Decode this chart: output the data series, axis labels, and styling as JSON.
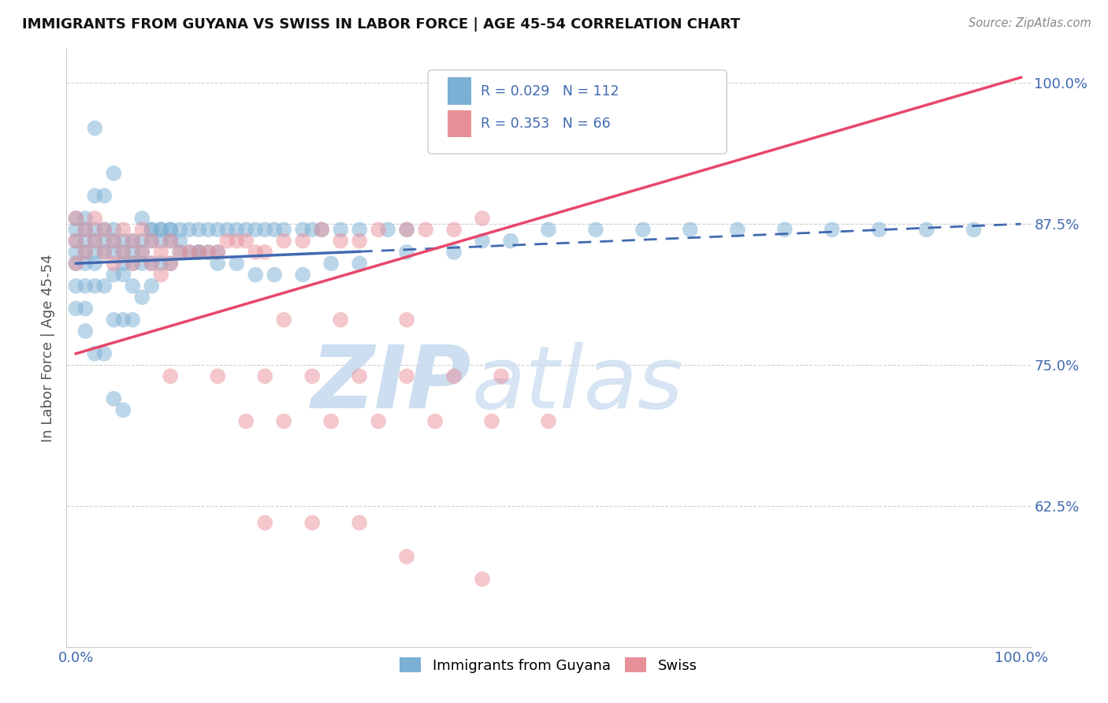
{
  "title": "IMMIGRANTS FROM GUYANA VS SWISS IN LABOR FORCE | AGE 45-54 CORRELATION CHART",
  "source": "Source: ZipAtlas.com",
  "ylabel": "In Labor Force | Age 45-54",
  "xlim": [
    -0.01,
    1.01
  ],
  "ylim": [
    0.5,
    1.03
  ],
  "xtick_positions": [
    0.0,
    1.0
  ],
  "xtick_labels": [
    "0.0%",
    "100.0%"
  ],
  "ytick_vals": [
    0.625,
    0.75,
    0.875,
    1.0
  ],
  "ytick_labels": [
    "62.5%",
    "75.0%",
    "87.5%",
    "100.0%"
  ],
  "legend_r1": "R = 0.029",
  "legend_n1": "N = 112",
  "legend_r2": "R = 0.353",
  "legend_n2": "N = 66",
  "legend_label1": "Immigrants from Guyana",
  "legend_label2": "Swiss",
  "color_blue": "#7bafd4",
  "color_pink": "#e8909a",
  "color_blue_line": "#4169b0",
  "color_pink_line": "#e8476a",
  "watermark_zip_color": "#c5d9ee",
  "watermark_atlas_color": "#c5d9ee",
  "background_color": "#ffffff",
  "grid_color": "#d0d0d0",
  "tick_color": "#4169b0",
  "ylabel_color": "#555555",
  "title_color": "#111111",
  "source_color": "#888888",
  "blue_x": [
    0.0,
    0.0,
    0.0,
    0.0,
    0.0,
    0.0,
    0.0,
    0.01,
    0.01,
    0.01,
    0.01,
    0.01,
    0.01,
    0.01,
    0.01,
    0.02,
    0.02,
    0.02,
    0.02,
    0.02,
    0.02,
    0.02,
    0.03,
    0.03,
    0.03,
    0.03,
    0.03,
    0.03,
    0.04,
    0.04,
    0.04,
    0.04,
    0.04,
    0.05,
    0.05,
    0.05,
    0.05,
    0.05,
    0.06,
    0.06,
    0.06,
    0.06,
    0.07,
    0.07,
    0.07,
    0.07,
    0.08,
    0.08,
    0.08,
    0.08,
    0.09,
    0.09,
    0.09,
    0.1,
    0.1,
    0.1,
    0.11,
    0.11,
    0.12,
    0.12,
    0.13,
    0.13,
    0.14,
    0.14,
    0.15,
    0.15,
    0.16,
    0.17,
    0.18,
    0.19,
    0.2,
    0.21,
    0.22,
    0.24,
    0.25,
    0.26,
    0.28,
    0.3,
    0.33,
    0.35,
    0.02,
    0.04,
    0.04,
    0.05,
    0.06,
    0.07,
    0.08,
    0.09,
    0.1,
    0.11,
    0.13,
    0.15,
    0.17,
    0.19,
    0.21,
    0.24,
    0.27,
    0.3,
    0.35,
    0.4,
    0.43,
    0.46,
    0.5,
    0.55,
    0.6,
    0.65,
    0.7,
    0.75,
    0.8,
    0.85,
    0.9,
    0.95
  ],
  "blue_y": [
    0.84,
    0.85,
    0.86,
    0.87,
    0.88,
    0.82,
    0.8,
    0.84,
    0.85,
    0.86,
    0.87,
    0.88,
    0.82,
    0.8,
    0.78,
    0.84,
    0.85,
    0.86,
    0.87,
    0.9,
    0.82,
    0.76,
    0.85,
    0.86,
    0.87,
    0.9,
    0.82,
    0.76,
    0.85,
    0.86,
    0.87,
    0.83,
    0.79,
    0.85,
    0.86,
    0.84,
    0.83,
    0.79,
    0.86,
    0.85,
    0.84,
    0.82,
    0.86,
    0.85,
    0.84,
    0.81,
    0.87,
    0.86,
    0.84,
    0.82,
    0.87,
    0.86,
    0.84,
    0.87,
    0.86,
    0.84,
    0.87,
    0.85,
    0.87,
    0.85,
    0.87,
    0.85,
    0.87,
    0.85,
    0.87,
    0.85,
    0.87,
    0.87,
    0.87,
    0.87,
    0.87,
    0.87,
    0.87,
    0.87,
    0.87,
    0.87,
    0.87,
    0.87,
    0.87,
    0.87,
    0.96,
    0.92,
    0.72,
    0.71,
    0.79,
    0.88,
    0.87,
    0.87,
    0.87,
    0.86,
    0.85,
    0.84,
    0.84,
    0.83,
    0.83,
    0.83,
    0.84,
    0.84,
    0.85,
    0.85,
    0.86,
    0.86,
    0.87,
    0.87,
    0.87,
    0.87,
    0.87,
    0.87,
    0.87,
    0.87,
    0.87,
    0.87
  ],
  "pink_x": [
    0.0,
    0.0,
    0.0,
    0.01,
    0.01,
    0.02,
    0.02,
    0.03,
    0.03,
    0.04,
    0.04,
    0.05,
    0.05,
    0.06,
    0.06,
    0.07,
    0.07,
    0.08,
    0.08,
    0.09,
    0.09,
    0.1,
    0.1,
    0.11,
    0.12,
    0.13,
    0.14,
    0.15,
    0.16,
    0.17,
    0.18,
    0.19,
    0.2,
    0.22,
    0.24,
    0.26,
    0.28,
    0.3,
    0.32,
    0.35,
    0.37,
    0.4,
    0.43,
    0.22,
    0.28,
    0.35,
    0.1,
    0.15,
    0.2,
    0.25,
    0.3,
    0.35,
    0.4,
    0.45,
    0.18,
    0.22,
    0.27,
    0.32,
    0.38,
    0.44,
    0.5,
    0.2,
    0.25,
    0.3,
    0.35,
    0.43
  ],
  "pink_y": [
    0.84,
    0.86,
    0.88,
    0.85,
    0.87,
    0.86,
    0.88,
    0.85,
    0.87,
    0.86,
    0.84,
    0.85,
    0.87,
    0.86,
    0.84,
    0.85,
    0.87,
    0.86,
    0.84,
    0.85,
    0.83,
    0.86,
    0.84,
    0.85,
    0.85,
    0.85,
    0.85,
    0.85,
    0.86,
    0.86,
    0.86,
    0.85,
    0.85,
    0.86,
    0.86,
    0.87,
    0.86,
    0.86,
    0.87,
    0.87,
    0.87,
    0.87,
    0.88,
    0.79,
    0.79,
    0.79,
    0.74,
    0.74,
    0.74,
    0.74,
    0.74,
    0.74,
    0.74,
    0.74,
    0.7,
    0.7,
    0.7,
    0.7,
    0.7,
    0.7,
    0.7,
    0.61,
    0.61,
    0.61,
    0.58,
    0.56
  ],
  "blue_line_x": [
    0.0,
    1.0
  ],
  "blue_line_y_start": 0.84,
  "blue_line_y_end": 0.875,
  "pink_line_x": [
    0.0,
    1.0
  ],
  "pink_line_y_start": 0.76,
  "pink_line_y_end": 1.005
}
